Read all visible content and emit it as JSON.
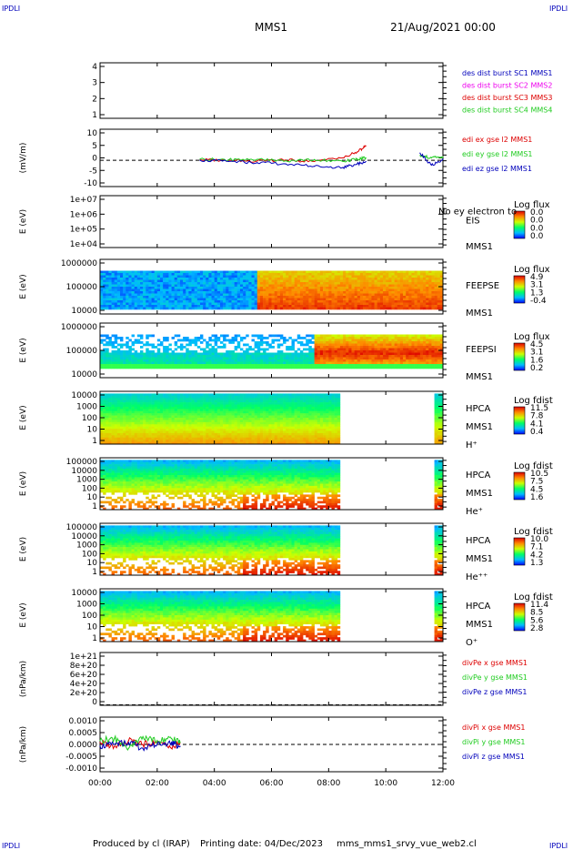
{
  "header": {
    "corner_tl": "IPDLI",
    "corner_tr": "IPDLI",
    "corner_bl": "IPDLI",
    "corner_br": "IPDLI",
    "title": "MMS1",
    "date": "21/Aug/2021 00:00"
  },
  "footer": {
    "producer": "Produced by cl (IRAP)",
    "printing": "Printing date: 04/Dec/2023",
    "file": "mms_mms1_srvy_vue_web2.cl"
  },
  "time_axis": {
    "ticks": [
      "00:00",
      "02:00",
      "04:00",
      "06:00",
      "08:00",
      "10:00",
      "12:00"
    ]
  },
  "colors": {
    "red": "#dd0000",
    "green": "#22cc22",
    "blue": "#0000bb",
    "magenta": "#ee00ee",
    "black": "#000000"
  },
  "chart_data": [
    {
      "id": "p1",
      "type": "line",
      "yticks": [
        "4",
        "3",
        "2",
        "1"
      ],
      "ylim": [
        0.5,
        4.5
      ],
      "legend": [
        {
          "text": "des dist burst SC1 MMS1",
          "color": "#0000bb"
        },
        {
          "text": "des dist burst SC2 MMS2",
          "color": "#ee00ee"
        },
        {
          "text": "des dist burst SC3 MMS3",
          "color": "#dd0000"
        },
        {
          "text": "des dist burst SC4 MMS4",
          "color": "#22cc22"
        }
      ],
      "series": []
    },
    {
      "id": "p2",
      "type": "line",
      "ylabel": "(mV/m)",
      "yticks": [
        "10",
        "5",
        "0",
        "-5",
        "-10"
      ],
      "ylim": [
        -11,
        13
      ],
      "legend": [
        {
          "text": "edi ex gse l2 MMS1",
          "color": "#dd0000"
        },
        {
          "text": "edi ey gse l2 MMS1",
          "color": "#22cc22"
        },
        {
          "text": "edi ez gse l2 MMS1",
          "color": "#0000bb"
        }
      ],
      "x_hours": [
        3.5,
        4.5,
        5.5,
        6.5,
        7.5,
        8.5,
        9.0,
        9.3,
        10.7,
        11.2,
        11.6,
        12.0
      ],
      "series": [
        {
          "name": "edi ex gse l2 MMS1",
          "values": [
            0.2,
            0.0,
            -0.3,
            0.1,
            -0.5,
            1.0,
            3.5,
            6.0,
            null,
            null,
            null,
            null
          ]
        },
        {
          "name": "edi ey gse l2 MMS1",
          "values": [
            0.5,
            0.2,
            0.4,
            -0.2,
            0.3,
            -0.5,
            0.5,
            1.0,
            null,
            2.0,
            1.0,
            1.5
          ]
        },
        {
          "name": "edi ez gse l2 MMS1",
          "values": [
            0.0,
            -0.5,
            -1.0,
            -1.5,
            -2.5,
            -3.0,
            -1.5,
            -0.5,
            null,
            3.0,
            -2.0,
            0.5
          ]
        }
      ],
      "dashed_zero": true
    },
    {
      "id": "p3",
      "type": "heatmap",
      "ylabel": "E (eV)",
      "yticks": [
        "1e+07",
        "1e+06",
        "1e+05",
        "1e+04"
      ],
      "instrument": [
        "EIS",
        "MMS1"
      ],
      "overlay": "No ey electron to",
      "colorbar": {
        "title": "Log flux",
        "ticks": [
          "0.0",
          "0.0",
          "0.0",
          "0.0"
        ]
      }
    },
    {
      "id": "p4",
      "type": "heatmap",
      "ylabel": "E (eV)",
      "yticks": [
        "1000000",
        "100000",
        "10000"
      ],
      "instrument": [
        "FEEPSE",
        "MMS1"
      ],
      "colorbar": {
        "title": "Log flux",
        "ticks": [
          "4.9",
          "3.1",
          "1.3",
          "-0.4"
        ]
      }
    },
    {
      "id": "p5",
      "type": "heatmap",
      "ylabel": "E (eV)",
      "yticks": [
        "1000000",
        "100000",
        "10000"
      ],
      "instrument": [
        "FEEPSI",
        "MMS1"
      ],
      "colorbar": {
        "title": "Log flux",
        "ticks": [
          "4.5",
          "3.1",
          "1.6",
          "0.2"
        ]
      }
    },
    {
      "id": "p6",
      "type": "heatmap",
      "ylabel": "E (eV)",
      "yticks": [
        "10000",
        "1000",
        "100",
        "10",
        "1"
      ],
      "instrument": [
        "HPCA",
        "MMS1",
        "H⁺"
      ],
      "colorbar": {
        "title": "Log fdist",
        "ticks": [
          "11.5",
          "7.8",
          "4.1",
          "0.4"
        ]
      }
    },
    {
      "id": "p7",
      "type": "heatmap",
      "ylabel": "E (eV)",
      "yticks": [
        "100000",
        "10000",
        "1000",
        "100",
        "10",
        "1"
      ],
      "instrument": [
        "HPCA",
        "MMS1",
        "He⁺"
      ],
      "colorbar": {
        "title": "Log fdist",
        "ticks": [
          "10.5",
          "7.5",
          "4.5",
          "1.6"
        ]
      }
    },
    {
      "id": "p8",
      "type": "heatmap",
      "ylabel": "E (eV)",
      "yticks": [
        "100000",
        "10000",
        "1000",
        "100",
        "10",
        "1"
      ],
      "instrument": [
        "HPCA",
        "MMS1",
        "He⁺⁺"
      ],
      "colorbar": {
        "title": "Log fdist",
        "ticks": [
          "10.0",
          "7.1",
          "4.2",
          "1.3"
        ]
      }
    },
    {
      "id": "p9",
      "type": "heatmap",
      "ylabel": "E (eV)",
      "yticks": [
        "10000",
        "1000",
        "100",
        "10",
        "1"
      ],
      "instrument": [
        "HPCA",
        "MMS1",
        "O⁺"
      ],
      "colorbar": {
        "title": "Log fdist",
        "ticks": [
          "11.4",
          "8.5",
          "5.6",
          "2.8"
        ]
      }
    },
    {
      "id": "p10",
      "type": "line",
      "ylabel": "(nPa/km)",
      "yticks": [
        "1e+21",
        "8e+20",
        "6e+20",
        "4e+20",
        "2e+20",
        "0"
      ],
      "ylim": [
        -1e+19,
        1.1e+21
      ],
      "legend": [
        {
          "text": "divPe x gse MMS1",
          "color": "#dd0000"
        },
        {
          "text": "divPe y gse MMS1",
          "color": "#22cc22"
        },
        {
          "text": "divPe z gse MMS1",
          "color": "#0000bb"
        }
      ],
      "series": [],
      "dashed_zero": true
    },
    {
      "id": "p11",
      "type": "line",
      "ylabel": "(nPa/km)",
      "yticks": [
        "0.0010",
        "0.0005",
        "0.0000",
        "-0.0005",
        "-0.0010"
      ],
      "ylim": [
        -0.0014,
        0.0014
      ],
      "legend": [
        {
          "text": "divPi x gse MMS1",
          "color": "#dd0000"
        },
        {
          "text": "divPi y gse MMS1",
          "color": "#22cc22"
        },
        {
          "text": "divPi z gse MMS1",
          "color": "#0000bb"
        }
      ],
      "x_hours": [
        0.0,
        0.5,
        1.0,
        1.5,
        2.0,
        2.5,
        2.8
      ],
      "series": [
        {
          "name": "divPi x gse MMS1",
          "values": [
            0.0001,
            -0.0001,
            0.0002,
            0.0,
            0.0001,
            -0.0002,
            0.0001
          ]
        },
        {
          "name": "divPi y gse MMS1",
          "values": [
            0.0002,
            0.0003,
            -0.0002,
            0.0004,
            0.0002,
            0.0003,
            0.0001
          ]
        },
        {
          "name": "divPi z gse MMS1",
          "values": [
            -0.0001,
            0.0,
            0.0001,
            -0.0002,
            0.0,
            0.0001,
            -0.0001
          ]
        }
      ],
      "dashed_zero": true
    }
  ]
}
